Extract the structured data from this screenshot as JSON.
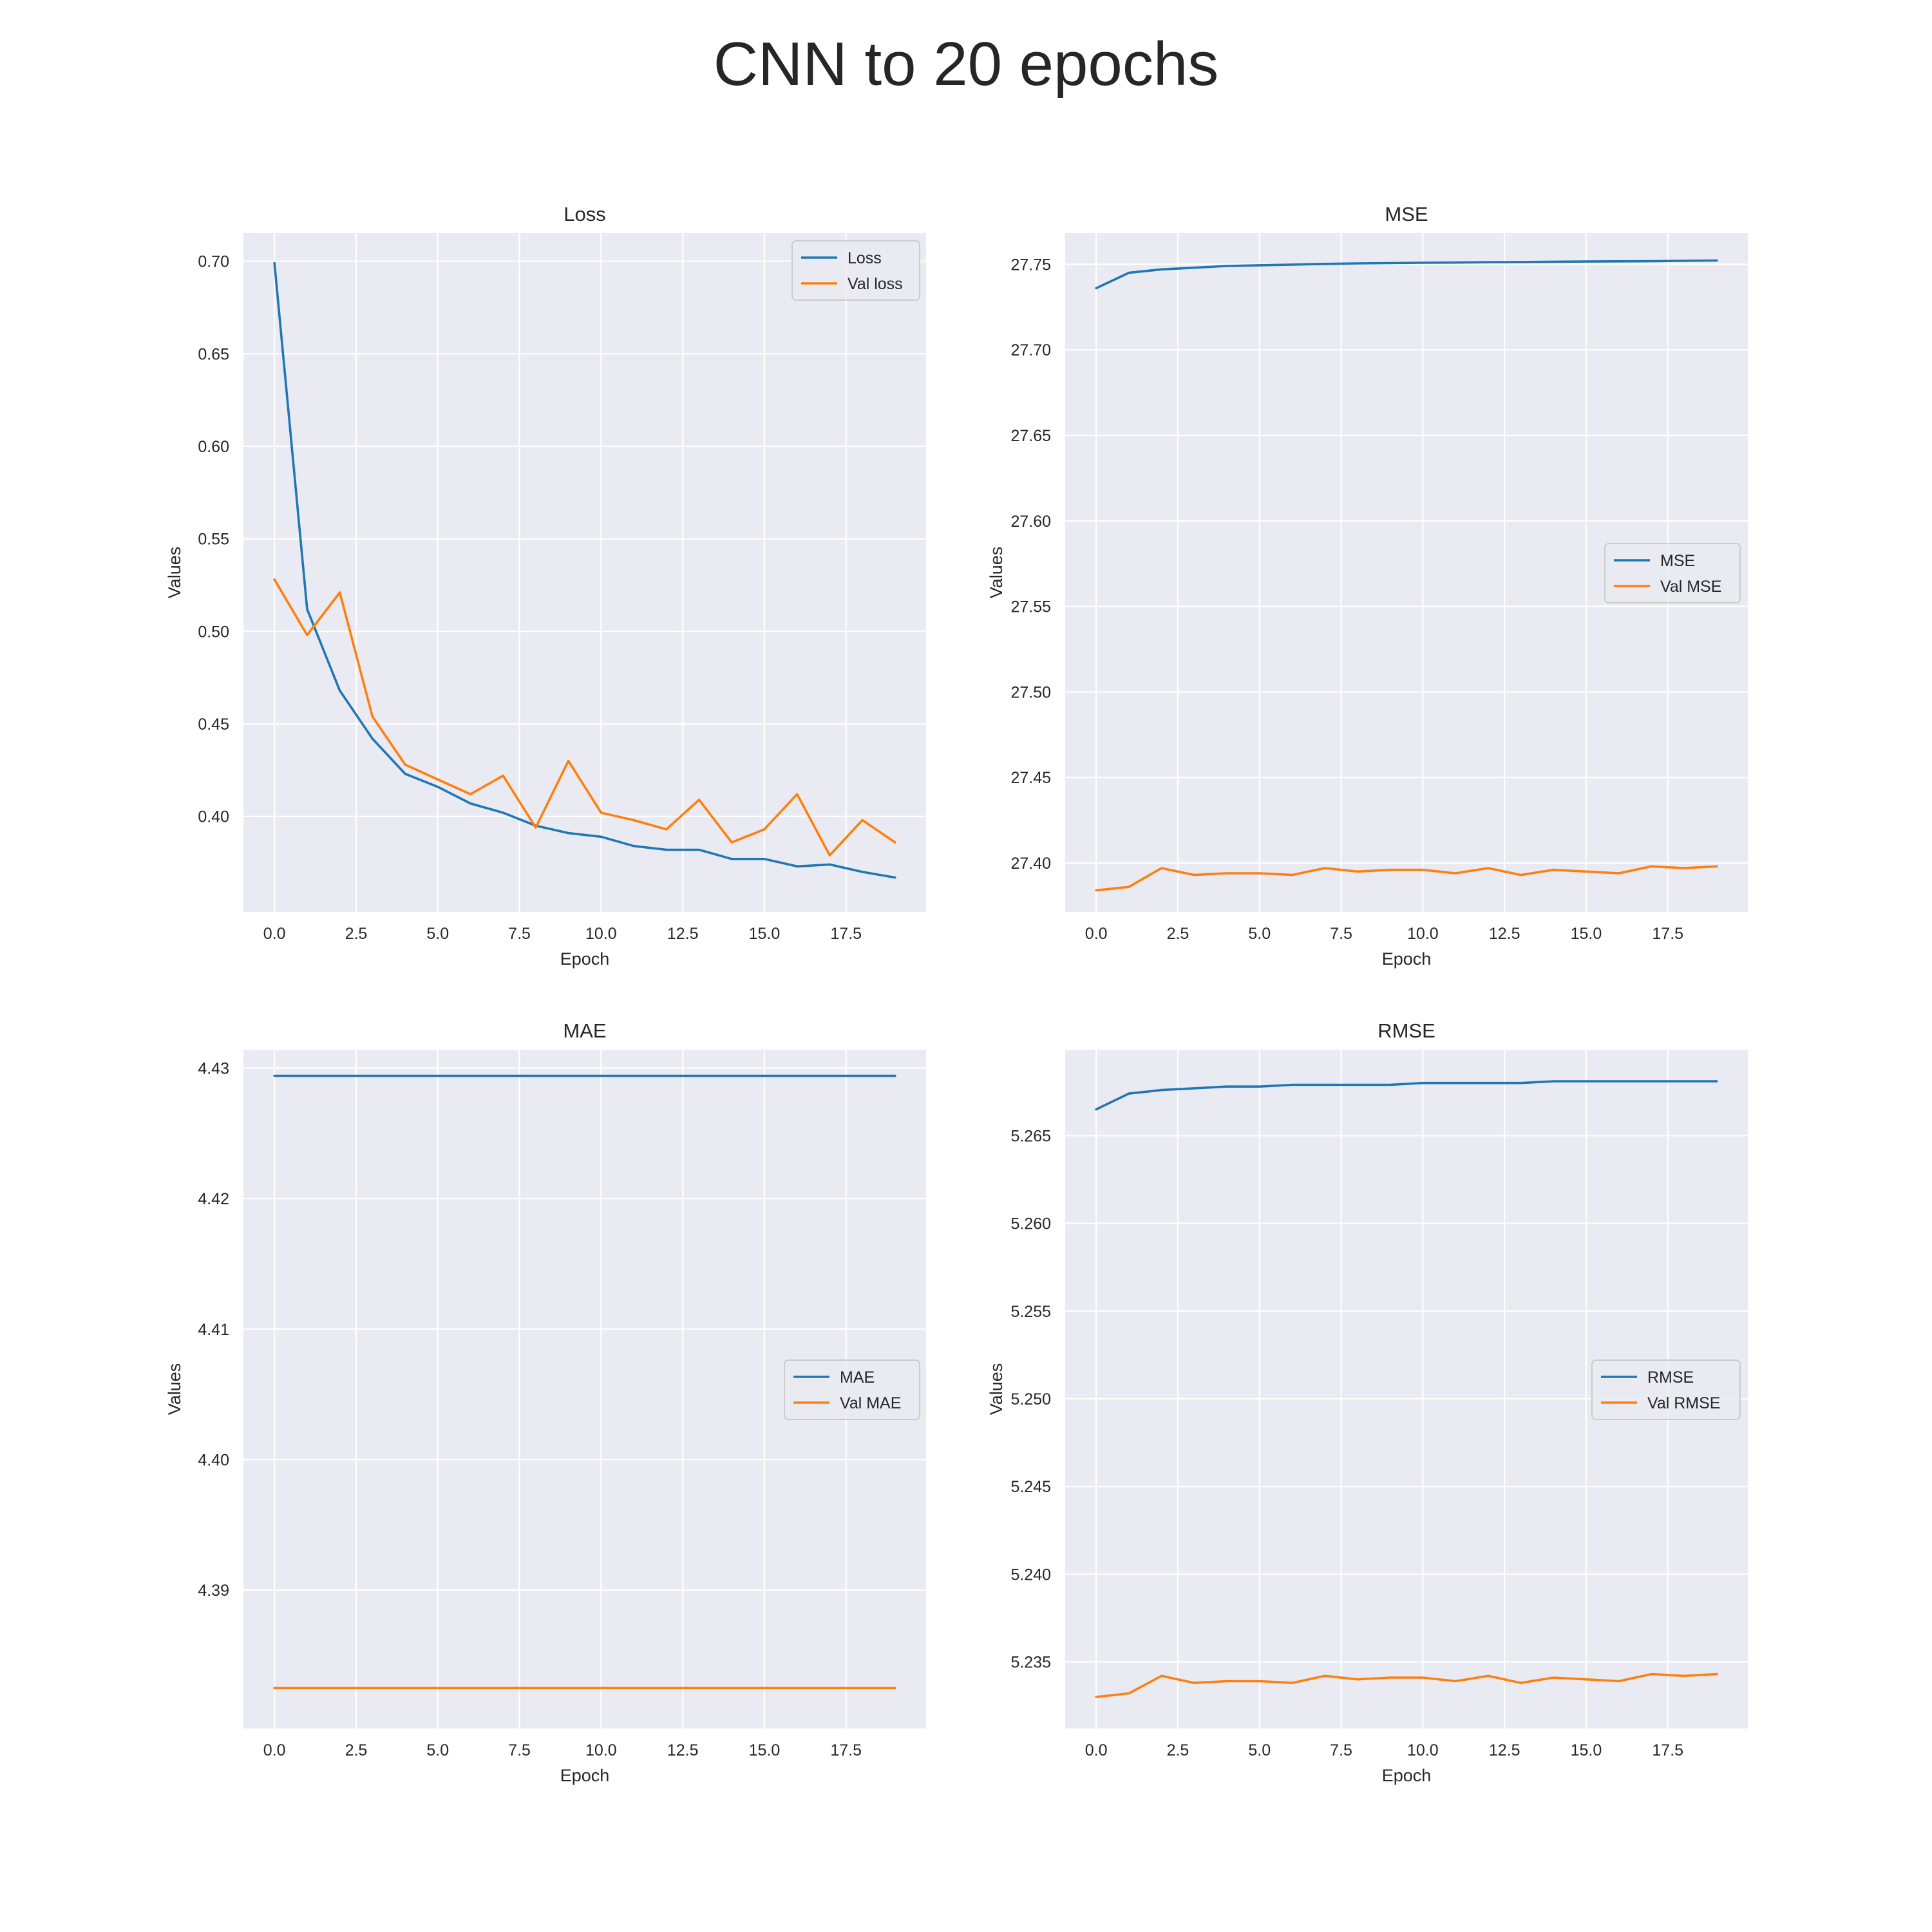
{
  "suptitle": "CNN to 20 epochs",
  "colors": {
    "series_a": "#1f77b4",
    "series_b": "#ff7f0e",
    "panel_bg": "#eaeaf2",
    "grid": "#ffffff"
  },
  "chart_data": [
    {
      "type": "line",
      "title": "Loss",
      "xlabel": "Epoch",
      "ylabel": "Values",
      "xlim": [
        -0.95,
        19.95
      ],
      "ylim": [
        0.3484,
        0.7152
      ],
      "xticks": [
        0.0,
        2.5,
        5.0,
        7.5,
        10.0,
        12.5,
        15.0,
        17.5
      ],
      "xtick_labels": [
        "0.0",
        "2.5",
        "5.0",
        "7.5",
        "10.0",
        "12.5",
        "15.0",
        "17.5"
      ],
      "yticks": [
        0.4,
        0.45,
        0.5,
        0.55,
        0.6,
        0.65,
        0.7
      ],
      "ytick_labels": [
        "0.40",
        "0.45",
        "0.50",
        "0.55",
        "0.60",
        "0.65",
        "0.70"
      ],
      "grid": true,
      "legend_position": "upper right",
      "x": [
        0,
        1,
        2,
        3,
        4,
        5,
        6,
        7,
        8,
        9,
        10,
        11,
        12,
        13,
        14,
        15,
        16,
        17,
        18,
        19
      ],
      "series": [
        {
          "name": "Loss",
          "color": "#1f77b4",
          "values": [
            0.699,
            0.512,
            0.468,
            0.442,
            0.423,
            0.416,
            0.407,
            0.402,
            0.395,
            0.391,
            0.389,
            0.384,
            0.382,
            0.382,
            0.377,
            0.377,
            0.373,
            0.374,
            0.37,
            0.367
          ]
        },
        {
          "name": "Val loss",
          "color": "#ff7f0e",
          "values": [
            0.528,
            0.498,
            0.521,
            0.454,
            0.428,
            0.42,
            0.412,
            0.422,
            0.394,
            0.43,
            0.402,
            0.398,
            0.393,
            0.409,
            0.386,
            0.393,
            0.412,
            0.379,
            0.398,
            0.386
          ]
        }
      ]
    },
    {
      "type": "line",
      "title": "MSE",
      "xlabel": "Epoch",
      "ylabel": "",
      "xlim": [
        -0.95,
        19.95
      ],
      "ylim": [
        27.3714,
        27.7682
      ],
      "xticks": [
        0.0,
        2.5,
        5.0,
        7.5,
        10.0,
        12.5,
        15.0,
        17.5
      ],
      "xtick_labels": [
        "0.0",
        "2.5",
        "5.0",
        "7.5",
        "10.0",
        "12.5",
        "15.0",
        "17.5"
      ],
      "yticks": [
        27.4,
        27.45,
        27.5,
        27.55,
        27.6,
        27.65,
        27.7,
        27.75
      ],
      "ytick_labels": [
        "27.40",
        "27.45",
        "27.50",
        "27.55",
        "27.60",
        "27.65",
        "27.70",
        "27.75"
      ],
      "grid": true,
      "legend_position": "center right",
      "x": [
        0,
        1,
        2,
        3,
        4,
        5,
        6,
        7,
        8,
        9,
        10,
        11,
        12,
        13,
        14,
        15,
        16,
        17,
        18,
        19
      ],
      "series": [
        {
          "name": "MSE",
          "color": "#1f77b4",
          "values": [
            27.736,
            27.745,
            27.747,
            27.748,
            27.749,
            27.7494,
            27.7498,
            27.7502,
            27.7505,
            27.7507,
            27.7509,
            27.751,
            27.7512,
            27.7513,
            27.7515,
            27.7516,
            27.7517,
            27.7518,
            27.752,
            27.7522
          ]
        },
        {
          "name": "Val MSE",
          "color": "#ff7f0e",
          "values": [
            27.384,
            27.386,
            27.397,
            27.393,
            27.394,
            27.394,
            27.393,
            27.397,
            27.395,
            27.396,
            27.396,
            27.394,
            27.397,
            27.393,
            27.396,
            27.395,
            27.394,
            27.398,
            27.397,
            27.398
          ]
        }
      ]
    },
    {
      "type": "line",
      "title": "MAE",
      "xlabel": "Epoch",
      "ylabel": "",
      "xlim": [
        -0.95,
        19.95
      ],
      "ylim": [
        4.3794,
        4.4314
      ],
      "xticks": [
        0.0,
        2.5,
        5.0,
        7.5,
        10.0,
        12.5,
        15.0,
        17.5
      ],
      "xtick_labels": [
        "0.0",
        "2.5",
        "5.0",
        "7.5",
        "10.0",
        "12.5",
        "15.0",
        "17.5"
      ],
      "yticks": [
        4.39,
        4.4,
        4.41,
        4.42,
        4.43
      ],
      "ytick_labels": [
        "4.39",
        "4.40",
        "4.41",
        "4.42",
        "4.43"
      ],
      "grid": true,
      "legend_position": "center right",
      "x": [
        0,
        1,
        2,
        3,
        4,
        5,
        6,
        7,
        8,
        9,
        10,
        11,
        12,
        13,
        14,
        15,
        16,
        17,
        18,
        19
      ],
      "series": [
        {
          "name": "MAE",
          "color": "#1f77b4",
          "values": [
            4.4294,
            4.4294,
            4.4294,
            4.4294,
            4.4294,
            4.4294,
            4.4294,
            4.4294,
            4.4294,
            4.4294,
            4.4294,
            4.4294,
            4.4294,
            4.4294,
            4.4294,
            4.4294,
            4.4294,
            4.4294,
            4.4294,
            4.4294
          ]
        },
        {
          "name": "Val MAE",
          "color": "#ff7f0e",
          "values": [
            4.3825,
            4.3825,
            4.3825,
            4.3825,
            4.3825,
            4.3825,
            4.3825,
            4.3825,
            4.3825,
            4.3825,
            4.3825,
            4.3825,
            4.3825,
            4.3825,
            4.3825,
            4.3825,
            4.3825,
            4.3825,
            4.3825,
            4.3825
          ]
        }
      ]
    },
    {
      "type": "line",
      "title": "RMSE",
      "xlabel": "Epoch",
      "ylabel": "",
      "xlim": [
        -0.95,
        19.95
      ],
      "ylim": [
        5.2312,
        5.2699
      ],
      "xticks": [
        0.0,
        2.5,
        5.0,
        7.5,
        10.0,
        12.5,
        15.0,
        17.5
      ],
      "xtick_labels": [
        "0.0",
        "2.5",
        "5.0",
        "7.5",
        "10.0",
        "12.5",
        "15.0",
        "17.5"
      ],
      "yticks": [
        5.235,
        5.24,
        5.245,
        5.25,
        5.255,
        5.26,
        5.265
      ],
      "ytick_labels": [
        "5.235",
        "5.240",
        "5.245",
        "5.250",
        "5.255",
        "5.260",
        "5.265"
      ],
      "grid": true,
      "legend_position": "center right",
      "x": [
        0,
        1,
        2,
        3,
        4,
        5,
        6,
        7,
        8,
        9,
        10,
        11,
        12,
        13,
        14,
        15,
        16,
        17,
        18,
        19
      ],
      "series": [
        {
          "name": "RMSE",
          "color": "#1f77b4",
          "values": [
            5.2665,
            5.2674,
            5.2676,
            5.2677,
            5.2678,
            5.2678,
            5.2679,
            5.2679,
            5.2679,
            5.2679,
            5.268,
            5.268,
            5.268,
            5.268,
            5.2681,
            5.2681,
            5.2681,
            5.2681,
            5.2681,
            5.2681
          ]
        },
        {
          "name": "Val RMSE",
          "color": "#ff7f0e",
          "values": [
            5.233,
            5.2332,
            5.2342,
            5.2338,
            5.2339,
            5.2339,
            5.2338,
            5.2342,
            5.234,
            5.2341,
            5.2341,
            5.2339,
            5.2342,
            5.2338,
            5.2341,
            5.234,
            5.2339,
            5.2343,
            5.2342,
            5.2343
          ]
        }
      ]
    }
  ]
}
